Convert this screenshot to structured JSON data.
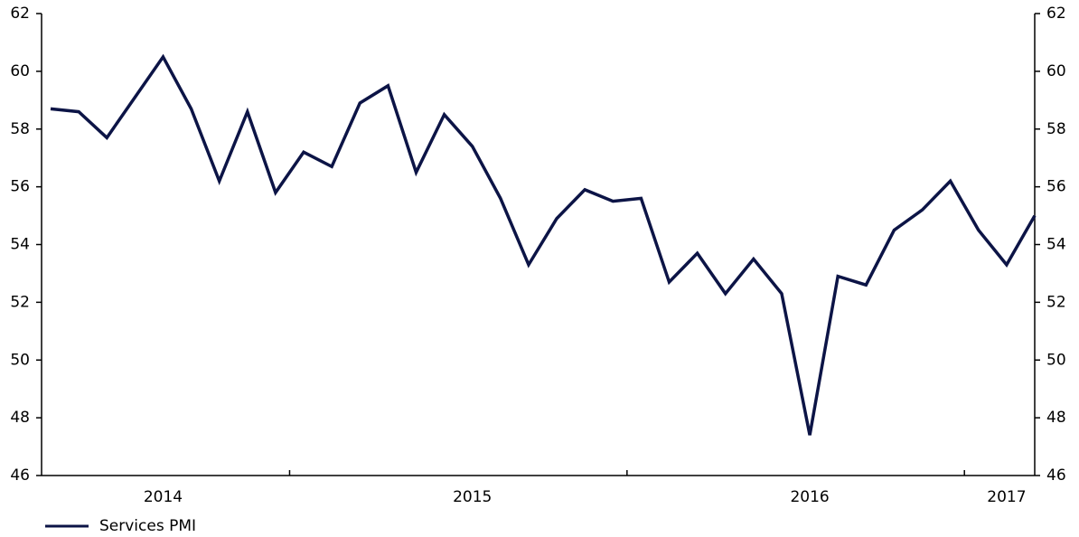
{
  "chart_data": {
    "type": "line",
    "categories": [
      null,
      null,
      null,
      null,
      "2014",
      null,
      null,
      null,
      null,
      null,
      null,
      null,
      null,
      null,
      null,
      "2015",
      null,
      null,
      null,
      null,
      null,
      null,
      null,
      null,
      null,
      null,
      null,
      "2016",
      null,
      null,
      null,
      null,
      null,
      null,
      "2017",
      null
    ],
    "series": [
      {
        "name": "Services PMI",
        "color": "#0c1446",
        "values": [
          58.7,
          58.6,
          57.7,
          59.1,
          60.5,
          58.7,
          56.2,
          58.6,
          55.8,
          57.2,
          56.7,
          58.9,
          59.5,
          56.5,
          58.5,
          57.4,
          55.6,
          53.3,
          54.9,
          55.9,
          55.5,
          55.6,
          52.7,
          53.7,
          52.3,
          53.5,
          52.3,
          47.4,
          52.9,
          52.6,
          54.5,
          55.2,
          56.2,
          54.5,
          53.3,
          55.0
        ]
      }
    ],
    "ylim": [
      46,
      62
    ],
    "yticks": [
      46,
      48,
      50,
      52,
      54,
      56,
      58,
      60,
      62
    ],
    "y2lim": [
      46,
      62
    ],
    "y2ticks": [
      46,
      48,
      50,
      52,
      54,
      56,
      58,
      60,
      62
    ],
    "legend": "bottom-left"
  }
}
